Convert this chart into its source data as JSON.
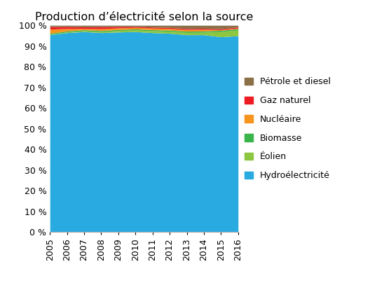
{
  "title": "Production d’électricité selon la source",
  "years": [
    2005,
    2006,
    2007,
    2008,
    2009,
    2010,
    2011,
    2012,
    2013,
    2014,
    2015,
    2016
  ],
  "series": {
    "Hydroélectricité": [
      95.5,
      96.5,
      97.0,
      96.5,
      96.8,
      97.0,
      96.5,
      96.2,
      95.5,
      95.5,
      94.5,
      95.0
    ],
    "Éolien": [
      0.2,
      0.3,
      0.4,
      0.5,
      0.7,
      0.8,
      0.9,
      1.0,
      1.1,
      1.2,
      2.5,
      2.8
    ],
    "Biomasse": [
      0.5,
      0.5,
      0.5,
      0.5,
      0.5,
      0.5,
      0.5,
      0.5,
      0.6,
      0.6,
      0.6,
      0.6
    ],
    "Nucléaire": [
      2.0,
      1.2,
      0.6,
      0.9,
      0.8,
      0.7,
      0.8,
      0.8,
      0.8,
      0.8,
      0.3,
      0.3
    ],
    "Gaz naturel": [
      1.2,
      1.0,
      0.8,
      1.0,
      0.7,
      0.5,
      0.5,
      0.5,
      0.5,
      0.5,
      0.5,
      0.5
    ],
    "Pétrole et diesel": [
      0.6,
      0.5,
      0.7,
      0.6,
      0.5,
      0.5,
      0.8,
      1.0,
      1.5,
      1.4,
      1.6,
      0.8
    ]
  },
  "colors": {
    "Hydroélectricité": "#29ABE2",
    "Éolien": "#8DC63F",
    "Biomasse": "#39B54A",
    "Nucléaire": "#F7941D",
    "Gaz naturel": "#ED1C24",
    "Pétrole et diesel": "#8B6F47"
  },
  "stack_order": [
    "Hydroélectricité",
    "Éolien",
    "Biomasse",
    "Nucléaire",
    "Gaz naturel",
    "Pétrole et diesel"
  ],
  "legend_order": [
    "Pétrole et diesel",
    "Gaz naturel",
    "Nucléaire",
    "Biomasse",
    "Éolien",
    "Hydroélectricité"
  ],
  "ylim": [
    0,
    100
  ],
  "ytick_values": [
    0,
    10,
    20,
    30,
    40,
    50,
    60,
    70,
    80,
    90,
    100
  ],
  "ytick_labels": [
    "0 %",
    "10 %",
    "20 %",
    "30 %",
    "40 %",
    "50 %",
    "60 %",
    "70 %",
    "80 %",
    "90 %",
    "100 %"
  ],
  "background_color": "#ffffff",
  "title_fontsize": 11.5,
  "legend_fontsize": 9,
  "tick_fontsize": 9,
  "fig_width": 5.48,
  "fig_height": 4.04,
  "dpi": 100
}
